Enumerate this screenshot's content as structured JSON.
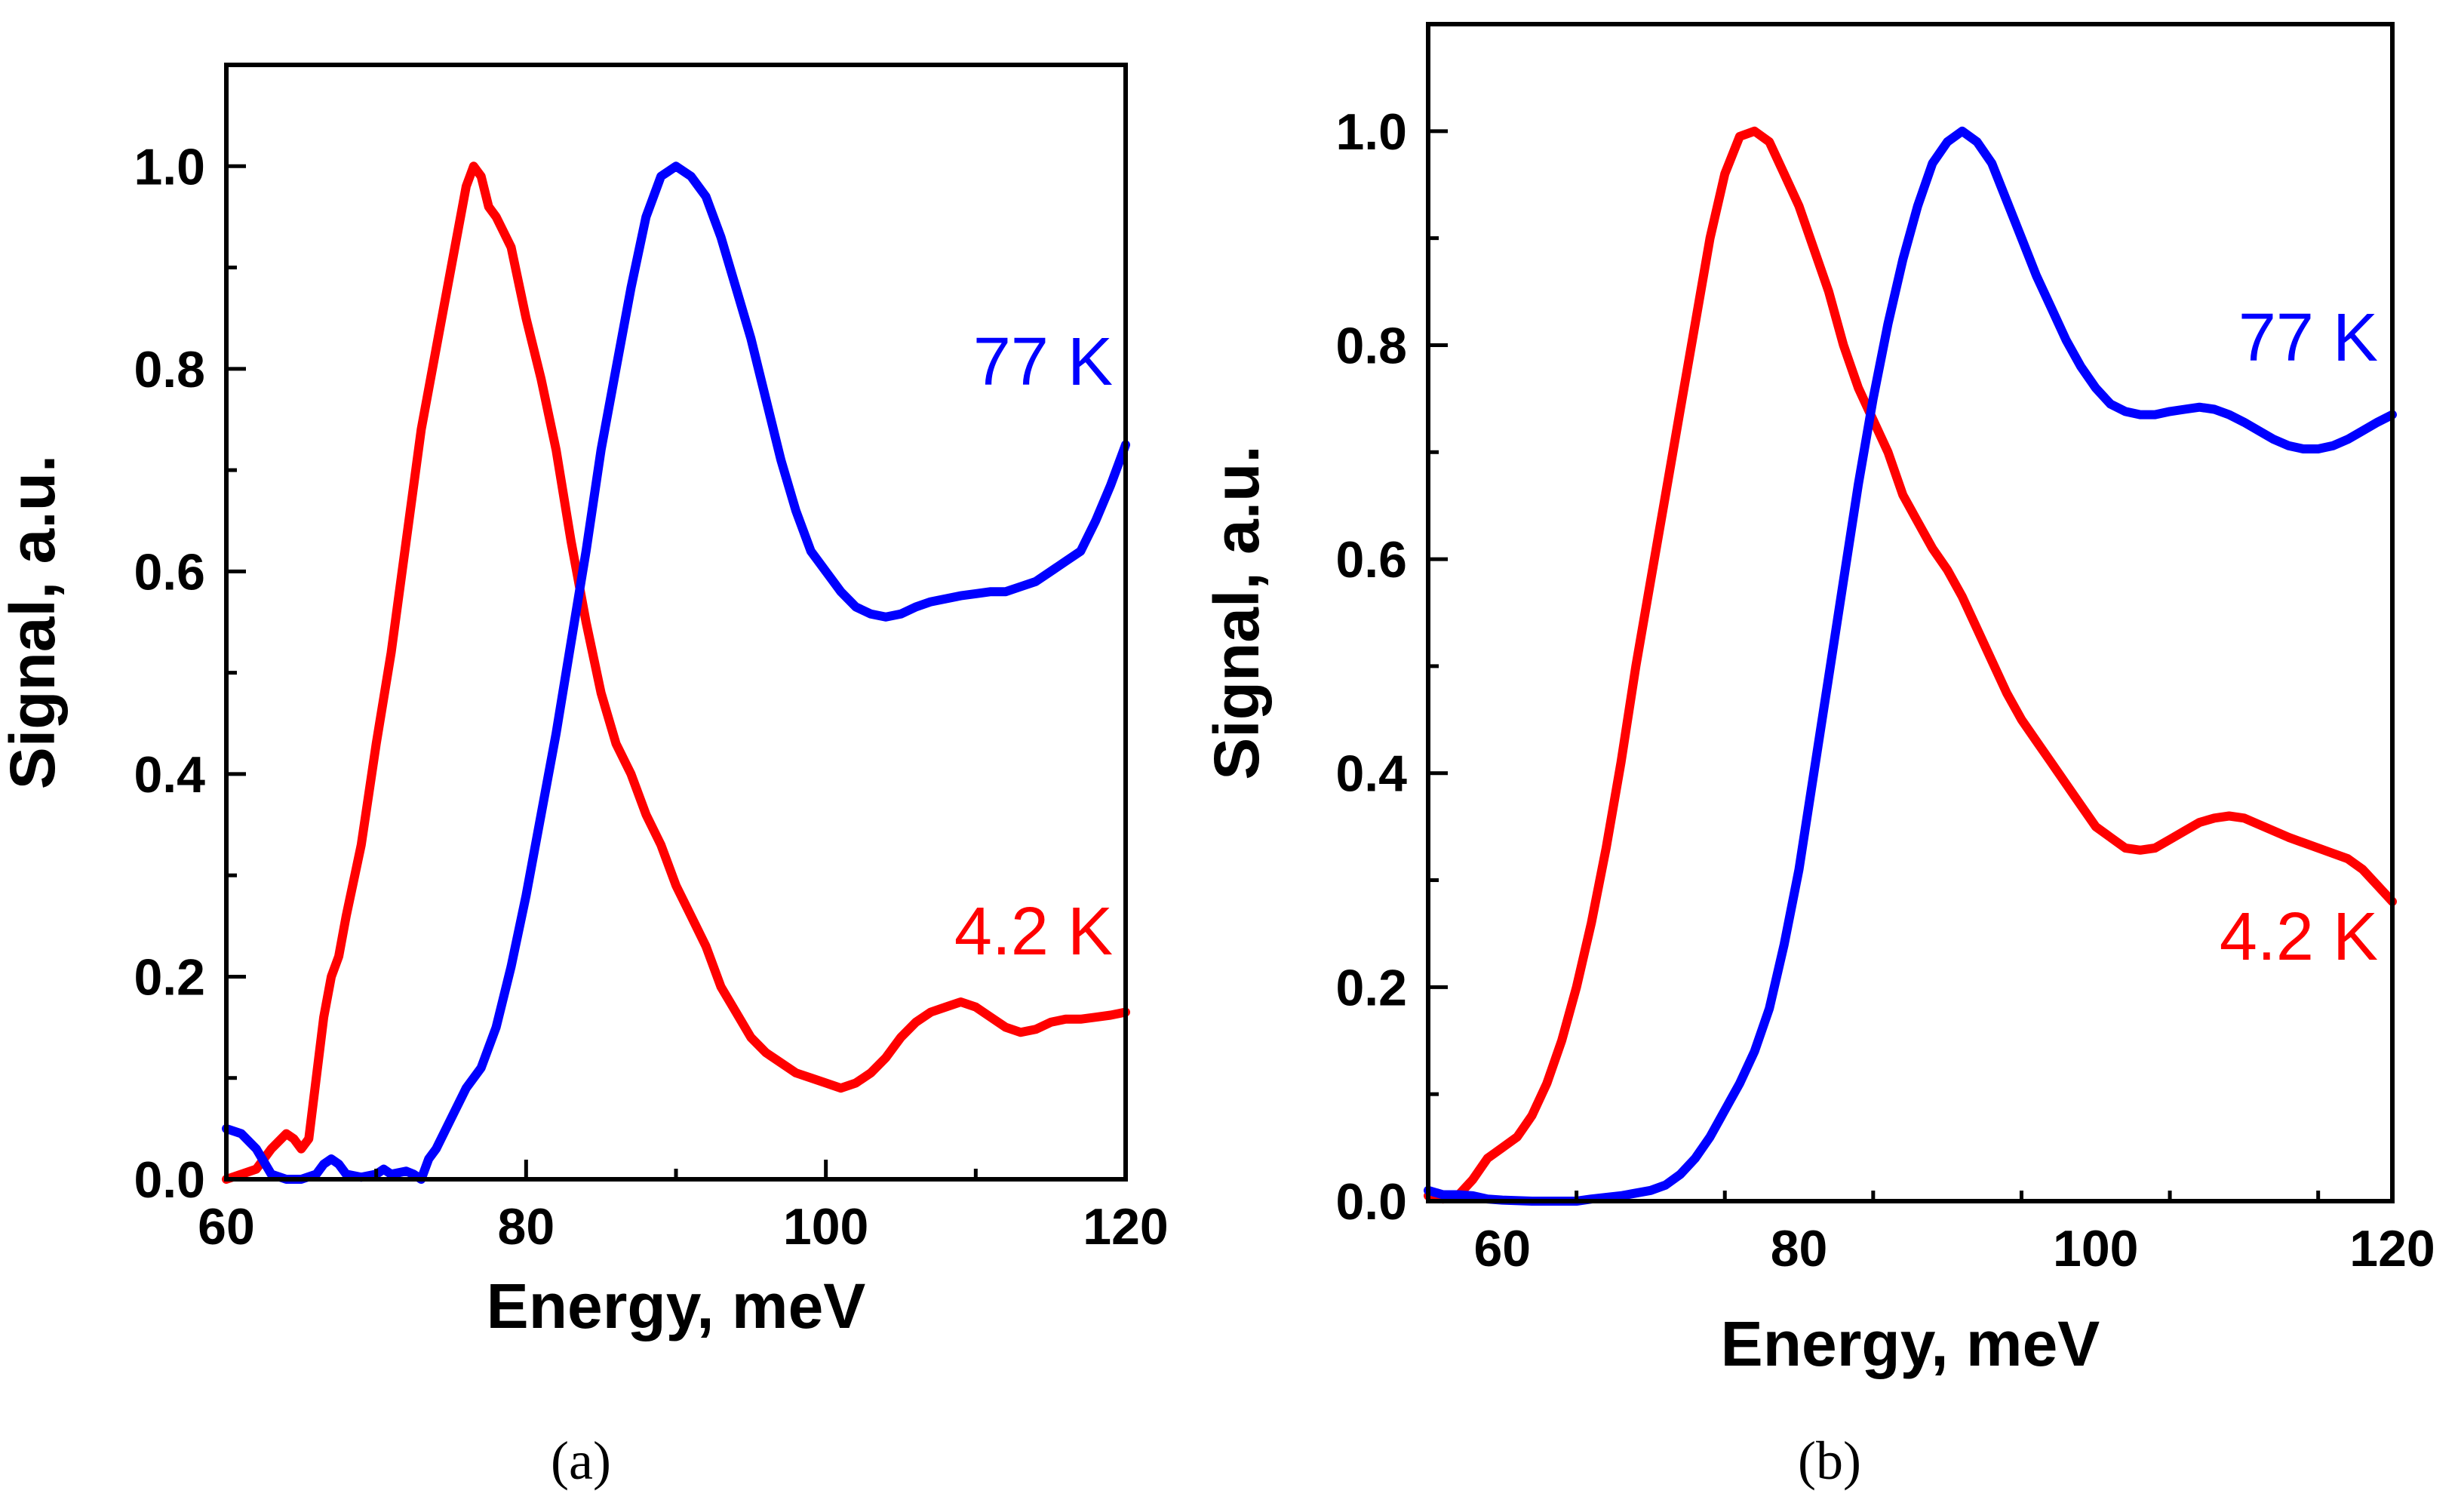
{
  "chart_data": [
    {
      "id": "a",
      "type": "line",
      "caption": "(a)",
      "xlabel": "Energy, meV",
      "ylabel": "Signal, a.u.",
      "xlim": [
        60,
        120
      ],
      "ylim": [
        0,
        1.1
      ],
      "x_ticks": [
        60,
        80,
        100,
        120
      ],
      "x_tick_labels": [
        "60",
        "80",
        "100",
        "120"
      ],
      "y_ticks": [
        0.0,
        0.2,
        0.4,
        0.6,
        0.8,
        1.0
      ],
      "y_tick_labels": [
        "0.0",
        "0.2",
        "0.4",
        "0.6",
        "0.8",
        "1.0"
      ],
      "series": [
        {
          "name": "4.2 K",
          "label": "4.2 K",
          "color": "#ff0000",
          "points": [
            [
              60,
              0
            ],
            [
              61,
              0.005
            ],
            [
              62,
              0.01
            ],
            [
              63,
              0.03
            ],
            [
              64,
              0.045
            ],
            [
              64.5,
              0.04
            ],
            [
              65,
              0.03
            ],
            [
              65.5,
              0.04
            ],
            [
              66,
              0.1
            ],
            [
              66.5,
              0.16
            ],
            [
              67,
              0.2
            ],
            [
              67.5,
              0.22
            ],
            [
              68,
              0.26
            ],
            [
              69,
              0.33
            ],
            [
              70,
              0.43
            ],
            [
              71,
              0.52
            ],
            [
              72,
              0.63
            ],
            [
              73,
              0.74
            ],
            [
              74,
              0.82
            ],
            [
              75,
              0.9
            ],
            [
              76,
              0.98
            ],
            [
              76.5,
              1.0
            ],
            [
              77,
              0.99
            ],
            [
              77.5,
              0.96
            ],
            [
              78,
              0.95
            ],
            [
              79,
              0.92
            ],
            [
              80,
              0.85
            ],
            [
              81,
              0.79
            ],
            [
              82,
              0.72
            ],
            [
              83,
              0.63
            ],
            [
              84,
              0.55
            ],
            [
              85,
              0.48
            ],
            [
              86,
              0.43
            ],
            [
              87,
              0.4
            ],
            [
              88,
              0.36
            ],
            [
              89,
              0.33
            ],
            [
              90,
              0.29
            ],
            [
              91,
              0.26
            ],
            [
              92,
              0.23
            ],
            [
              93,
              0.19
            ],
            [
              94,
              0.165
            ],
            [
              95,
              0.14
            ],
            [
              96,
              0.125
            ],
            [
              97,
              0.115
            ],
            [
              98,
              0.105
            ],
            [
              99,
              0.1
            ],
            [
              100,
              0.095
            ],
            [
              101,
              0.09
            ],
            [
              102,
              0.095
            ],
            [
              103,
              0.105
            ],
            [
              104,
              0.12
            ],
            [
              105,
              0.14
            ],
            [
              106,
              0.155
            ],
            [
              107,
              0.165
            ],
            [
              108,
              0.17
            ],
            [
              109,
              0.175
            ],
            [
              110,
              0.17
            ],
            [
              111,
              0.16
            ],
            [
              112,
              0.15
            ],
            [
              113,
              0.145
            ],
            [
              114,
              0.148
            ],
            [
              115,
              0.155
            ],
            [
              116,
              0.158
            ],
            [
              117,
              0.158
            ],
            [
              118,
              0.16
            ],
            [
              119,
              0.162
            ],
            [
              120,
              0.165
            ]
          ]
        },
        {
          "name": "77 K",
          "label": "77 K",
          "color": "#0000ff",
          "points": [
            [
              60,
              0.05
            ],
            [
              61,
              0.045
            ],
            [
              62,
              0.03
            ],
            [
              63,
              0.005
            ],
            [
              64,
              0
            ],
            [
              65,
              0
            ],
            [
              66,
              0.005
            ],
            [
              66.5,
              0.015
            ],
            [
              67,
              0.02
            ],
            [
              67.5,
              0.015
            ],
            [
              68,
              0.005
            ],
            [
              69,
              0.002
            ],
            [
              70,
              0.005
            ],
            [
              70.5,
              0.01
            ],
            [
              71,
              0.005
            ],
            [
              72,
              0.008
            ],
            [
              72.5,
              0.005
            ],
            [
              73,
              0
            ],
            [
              73.5,
              0.02
            ],
            [
              74,
              0.03
            ],
            [
              75,
              0.06
            ],
            [
              76,
              0.09
            ],
            [
              77,
              0.11
            ],
            [
              78,
              0.15
            ],
            [
              79,
              0.21
            ],
            [
              80,
              0.28
            ],
            [
              81,
              0.36
            ],
            [
              82,
              0.44
            ],
            [
              83,
              0.53
            ],
            [
              84,
              0.62
            ],
            [
              85,
              0.72
            ],
            [
              86,
              0.8
            ],
            [
              87,
              0.88
            ],
            [
              88,
              0.95
            ],
            [
              89,
              0.99
            ],
            [
              90,
              1.0
            ],
            [
              91,
              0.99
            ],
            [
              92,
              0.97
            ],
            [
              93,
              0.93
            ],
            [
              94,
              0.88
            ],
            [
              95,
              0.83
            ],
            [
              96,
              0.77
            ],
            [
              97,
              0.71
            ],
            [
              98,
              0.66
            ],
            [
              99,
              0.62
            ],
            [
              100,
              0.6
            ],
            [
              101,
              0.58
            ],
            [
              102,
              0.565
            ],
            [
              103,
              0.558
            ],
            [
              104,
              0.555
            ],
            [
              105,
              0.558
            ],
            [
              106,
              0.565
            ],
            [
              107,
              0.57
            ],
            [
              108,
              0.573
            ],
            [
              109,
              0.576
            ],
            [
              110,
              0.578
            ],
            [
              111,
              0.58
            ],
            [
              112,
              0.58
            ],
            [
              113,
              0.585
            ],
            [
              114,
              0.59
            ],
            [
              115,
              0.6
            ],
            [
              116,
              0.61
            ],
            [
              117,
              0.62
            ],
            [
              118,
              0.65
            ],
            [
              119,
              0.685
            ],
            [
              120,
              0.725
            ]
          ]
        }
      ]
    },
    {
      "id": "b",
      "type": "line",
      "caption": "(b)",
      "xlabel": "Energy, meV",
      "ylabel": "Signal, a.u.",
      "xlim": [
        55,
        120
      ],
      "ylim": [
        0,
        1.1
      ],
      "x_ticks": [
        60,
        80,
        100,
        120
      ],
      "x_tick_labels": [
        "60",
        "80",
        "100",
        "120"
      ],
      "y_ticks": [
        0.0,
        0.2,
        0.4,
        0.6,
        0.8,
        1.0
      ],
      "y_tick_labels": [
        "0.0",
        "0.2",
        "0.4",
        "0.6",
        "0.8",
        "1.0"
      ],
      "series": [
        {
          "name": "4.2 K",
          "label": "4.2 K",
          "color": "#ff0000",
          "points": [
            [
              55,
              0.005
            ],
            [
              56,
              0.002
            ],
            [
              57,
              0.005
            ],
            [
              58,
              0.02
            ],
            [
              59,
              0.04
            ],
            [
              60,
              0.05
            ],
            [
              61,
              0.06
            ],
            [
              62,
              0.08
            ],
            [
              63,
              0.11
            ],
            [
              64,
              0.15
            ],
            [
              65,
              0.2
            ],
            [
              66,
              0.26
            ],
            [
              67,
              0.33
            ],
            [
              68,
              0.41
            ],
            [
              69,
              0.5
            ],
            [
              70,
              0.58
            ],
            [
              71,
              0.66
            ],
            [
              72,
              0.74
            ],
            [
              73,
              0.82
            ],
            [
              74,
              0.9
            ],
            [
              75,
              0.96
            ],
            [
              76,
              0.995
            ],
            [
              77,
              1.0
            ],
            [
              78,
              0.99
            ],
            [
              79,
              0.96
            ],
            [
              80,
              0.93
            ],
            [
              81,
              0.89
            ],
            [
              82,
              0.85
            ],
            [
              83,
              0.8
            ],
            [
              84,
              0.76
            ],
            [
              85,
              0.73
            ],
            [
              86,
              0.7
            ],
            [
              87,
              0.66
            ],
            [
              88,
              0.635
            ],
            [
              89,
              0.61
            ],
            [
              90,
              0.59
            ],
            [
              91,
              0.565
            ],
            [
              92,
              0.535
            ],
            [
              93,
              0.505
            ],
            [
              94,
              0.475
            ],
            [
              95,
              0.45
            ],
            [
              96,
              0.43
            ],
            [
              97,
              0.41
            ],
            [
              98,
              0.39
            ],
            [
              99,
              0.37
            ],
            [
              100,
              0.35
            ],
            [
              101,
              0.34
            ],
            [
              102,
              0.33
            ],
            [
              103,
              0.328
            ],
            [
              104,
              0.33
            ],
            [
              105,
              0.338
            ],
            [
              106,
              0.346
            ],
            [
              107,
              0.354
            ],
            [
              108,
              0.358
            ],
            [
              109,
              0.36
            ],
            [
              110,
              0.358
            ],
            [
              111,
              0.352
            ],
            [
              112,
              0.346
            ],
            [
              113,
              0.34
            ],
            [
              114,
              0.335
            ],
            [
              115,
              0.33
            ],
            [
              116,
              0.325
            ],
            [
              117,
              0.32
            ],
            [
              118,
              0.31
            ],
            [
              119,
              0.295
            ],
            [
              120,
              0.28
            ]
          ]
        },
        {
          "name": "77 K",
          "label": "77 K",
          "color": "#0000ff",
          "points": [
            [
              55,
              0.01
            ],
            [
              56,
              0.006
            ],
            [
              57,
              0.006
            ],
            [
              58,
              0.005
            ],
            [
              59,
              0.002
            ],
            [
              60,
              0.001
            ],
            [
              62,
              0
            ],
            [
              65,
              0
            ],
            [
              66,
              0.002
            ],
            [
              68,
              0.005
            ],
            [
              70,
              0.01
            ],
            [
              71,
              0.015
            ],
            [
              72,
              0.025
            ],
            [
              73,
              0.04
            ],
            [
              74,
              0.06
            ],
            [
              75,
              0.085
            ],
            [
              76,
              0.11
            ],
            [
              77,
              0.14
            ],
            [
              78,
              0.18
            ],
            [
              79,
              0.24
            ],
            [
              80,
              0.31
            ],
            [
              81,
              0.4
            ],
            [
              82,
              0.49
            ],
            [
              83,
              0.58
            ],
            [
              84,
              0.67
            ],
            [
              85,
              0.75
            ],
            [
              86,
              0.82
            ],
            [
              87,
              0.88
            ],
            [
              88,
              0.93
            ],
            [
              89,
              0.97
            ],
            [
              90,
              0.99
            ],
            [
              91,
              1.0
            ],
            [
              92,
              0.99
            ],
            [
              93,
              0.97
            ],
            [
              94,
              0.935
            ],
            [
              95,
              0.9
            ],
            [
              96,
              0.865
            ],
            [
              97,
              0.835
            ],
            [
              98,
              0.805
            ],
            [
              99,
              0.78
            ],
            [
              100,
              0.76
            ],
            [
              101,
              0.745
            ],
            [
              102,
              0.738
            ],
            [
              103,
              0.735
            ],
            [
              104,
              0.735
            ],
            [
              105,
              0.738
            ],
            [
              106,
              0.74
            ],
            [
              107,
              0.742
            ],
            [
              108,
              0.74
            ],
            [
              109,
              0.735
            ],
            [
              110,
              0.728
            ],
            [
              111,
              0.72
            ],
            [
              112,
              0.712
            ],
            [
              113,
              0.706
            ],
            [
              114,
              0.703
            ],
            [
              115,
              0.703
            ],
            [
              116,
              0.706
            ],
            [
              117,
              0.712
            ],
            [
              118,
              0.72
            ],
            [
              119,
              0.728
            ],
            [
              120,
              0.735
            ]
          ]
        }
      ]
    }
  ]
}
